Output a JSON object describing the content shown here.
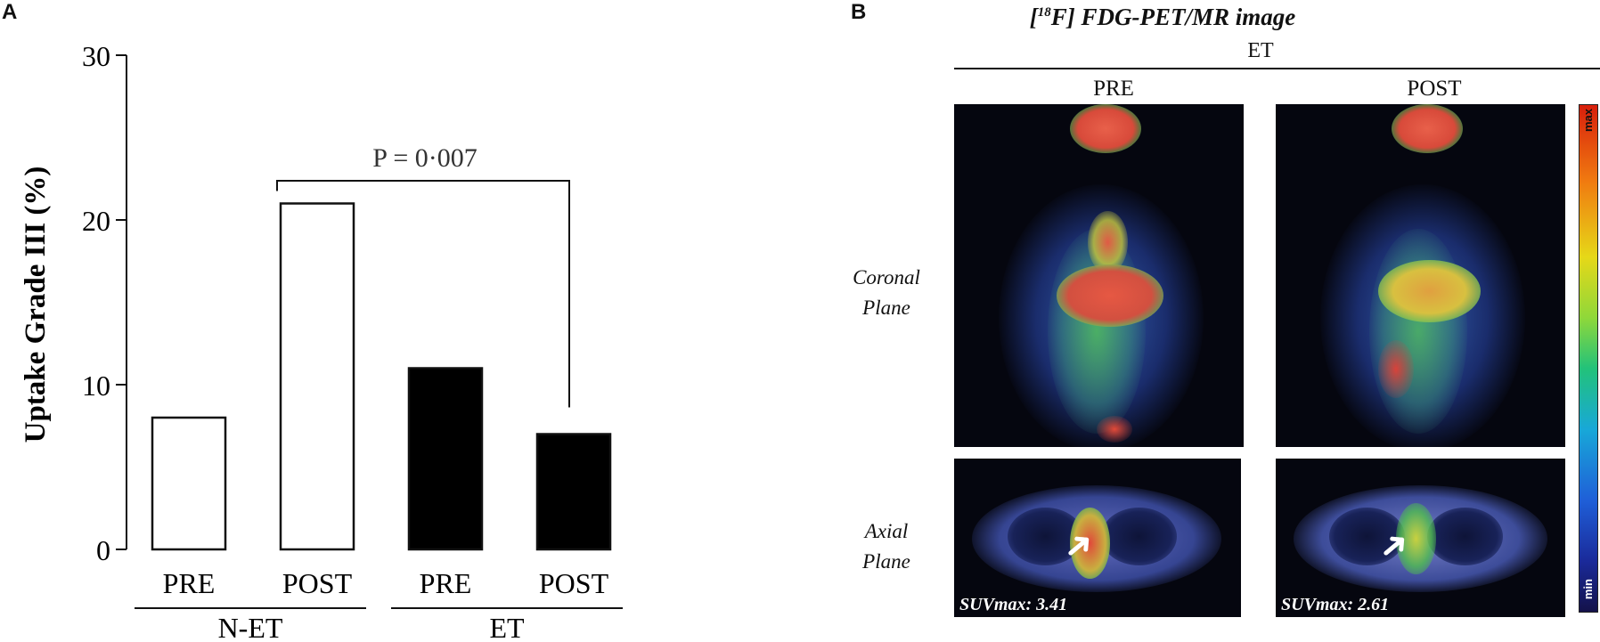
{
  "panelA": {
    "letter": "A",
    "chart_data": {
      "type": "bar",
      "categories": [
        "PRE",
        "POST",
        "PRE",
        "POST"
      ],
      "groups": [
        {
          "name": "N-ET",
          "categories": [
            "PRE",
            "POST"
          ]
        },
        {
          "name": "ET",
          "categories": [
            "PRE",
            "POST"
          ]
        }
      ],
      "values": [
        8,
        21,
        11,
        7
      ],
      "bar_fills": [
        "#ffffff",
        "#ffffff",
        "#000000",
        "#000000"
      ],
      "ylabel": "Uptake Grade III (%)",
      "ylim": [
        0,
        30
      ],
      "yticks": [
        0,
        10,
        20,
        30
      ],
      "annotation": {
        "text": "P = 0·007",
        "from_index": 1,
        "to_index": 3
      }
    }
  },
  "panelB": {
    "letter": "B",
    "title_prefix": "[",
    "title_sup": "18",
    "title_rest": "F] FDG-PET/MR image",
    "group_label": "ET",
    "col_pre": "PRE",
    "col_post": "POST",
    "row_coronal_1": "Coronal",
    "row_coronal_2": "Plane",
    "row_axial_1": "Axial",
    "row_axial_2": "Plane",
    "suv_pre_label": "SUVmax: 3.41",
    "suv_post_label": "SUVmax: 2.61",
    "colorbar_max": "max",
    "colorbar_min": "min"
  }
}
